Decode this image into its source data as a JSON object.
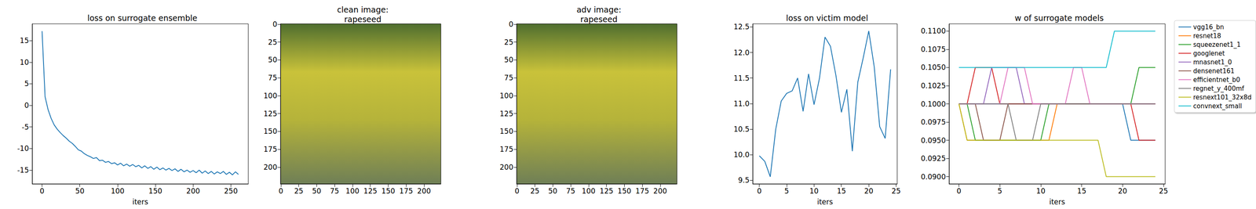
{
  "chart_data": [
    {
      "type": "line",
      "title": "loss on surrogate ensemble",
      "xlabel": "iters",
      "color": "#1f77b4",
      "grid": false,
      "x": [
        0,
        4,
        8,
        12,
        16,
        20,
        24,
        28,
        32,
        36,
        40,
        44,
        48,
        52,
        56,
        60,
        64,
        68,
        72,
        76,
        80,
        84,
        88,
        92,
        96,
        100,
        104,
        108,
        112,
        116,
        120,
        124,
        128,
        132,
        136,
        140,
        144,
        148,
        152,
        156,
        160,
        164,
        168,
        172,
        176,
        180,
        184,
        188,
        192,
        196,
        200,
        204,
        208,
        212,
        216,
        220,
        224,
        228,
        232,
        236,
        240,
        244,
        248,
        252,
        256,
        260
      ],
      "values": [
        17.2,
        2.0,
        -1.0,
        -3.0,
        -4.5,
        -5.5,
        -6.3,
        -7.0,
        -7.6,
        -8.3,
        -8.8,
        -9.5,
        -10.3,
        -10.6,
        -11.2,
        -11.6,
        -11.9,
        -12.3,
        -12.1,
        -12.8,
        -12.7,
        -13.2,
        -13.0,
        -13.5,
        -13.3,
        -13.8,
        -13.4,
        -14.0,
        -13.6,
        -14.1,
        -13.7,
        -14.2,
        -13.9,
        -14.5,
        -14.0,
        -14.6,
        -14.2,
        -14.8,
        -14.3,
        -14.9,
        -14.5,
        -15.0,
        -14.6,
        -15.1,
        -14.7,
        -15.3,
        -14.8,
        -15.4,
        -15.0,
        -15.5,
        -15.1,
        -15.6,
        -15.0,
        -15.7,
        -15.2,
        -15.8,
        -15.3,
        -15.9,
        -15.4,
        -15.8,
        -15.3,
        -16.0,
        -15.5,
        -16.1,
        -15.4,
        -16.0
      ],
      "xlim": [
        -13,
        273
      ],
      "xticks": [
        0,
        50,
        100,
        150,
        200,
        250
      ],
      "ylim": [
        -18.2,
        18.9
      ],
      "yticks": [
        -15,
        -10,
        -5,
        0,
        5,
        10,
        15
      ]
    },
    {
      "type": "image",
      "title": "clean image:\nrapeseed",
      "xlim": [
        -0.5,
        223.5
      ],
      "xticks": [
        0,
        25,
        50,
        75,
        100,
        125,
        150,
        175,
        200
      ],
      "ylim": [
        223.5,
        -0.5
      ],
      "yticks": [
        0,
        25,
        50,
        75,
        100,
        125,
        150,
        175,
        200
      ]
    },
    {
      "type": "image",
      "title": "adv image:\nrapeseed",
      "xlim": [
        -0.5,
        223.5
      ],
      "xticks": [
        0,
        25,
        50,
        75,
        100,
        125,
        150,
        175,
        200
      ],
      "ylim": [
        223.5,
        -0.5
      ],
      "yticks": [
        0,
        25,
        50,
        75,
        100,
        125,
        150,
        175,
        200
      ]
    },
    {
      "type": "line",
      "title": "loss on victim model",
      "xlabel": "iters",
      "color": "#1f77b4",
      "grid": false,
      "x": [
        0,
        1,
        2,
        3,
        4,
        5,
        6,
        7,
        8,
        9,
        10,
        11,
        12,
        13,
        14,
        15,
        16,
        17,
        18,
        19,
        20,
        21,
        22,
        23,
        24
      ],
      "values": [
        9.98,
        9.87,
        9.57,
        10.5,
        11.05,
        11.2,
        11.25,
        11.5,
        10.85,
        11.58,
        10.98,
        11.5,
        12.3,
        12.12,
        11.55,
        10.83,
        11.28,
        10.07,
        11.42,
        11.9,
        12.42,
        11.72,
        10.55,
        10.32,
        11.67
      ],
      "xlim": [
        -1.2,
        25.2
      ],
      "xticks": [
        0,
        5,
        10,
        15,
        20,
        25
      ],
      "ylim": [
        9.43,
        12.56
      ],
      "yticks": [
        9.5,
        {
          "value": 10,
          "label": "10.0"
        },
        10.5,
        {
          "value": 11,
          "label": "11.0"
        },
        11.5,
        {
          "value": 12,
          "label": "12.0"
        },
        12.5
      ]
    },
    {
      "type": "line",
      "title": "w of surrogate models",
      "xlabel": "iters",
      "grid": false,
      "legend": "right",
      "x": [
        0,
        1,
        2,
        3,
        4,
        5,
        6,
        7,
        8,
        9,
        10,
        11,
        12,
        13,
        14,
        15,
        16,
        17,
        18,
        19,
        20,
        21,
        22,
        23,
        24
      ],
      "series": [
        {
          "name": "vgg16_bn",
          "color": "#1f77b4",
          "values": [
            0.1,
            0.1,
            0.1,
            0.1,
            0.1,
            0.1,
            0.1,
            0.1,
            0.1,
            0.1,
            0.1,
            0.1,
            0.1,
            0.1,
            0.1,
            0.1,
            0.1,
            0.1,
            0.1,
            0.1,
            0.1,
            0.095,
            0.095,
            0.095,
            0.095
          ]
        },
        {
          "name": "resnet18",
          "color": "#ff7f0e",
          "values": [
            0.1,
            0.095,
            0.095,
            0.095,
            0.095,
            0.095,
            0.095,
            0.095,
            0.095,
            0.095,
            0.095,
            0.095,
            0.1,
            0.1,
            0.1,
            0.1,
            0.1,
            0.1,
            0.1,
            0.1,
            0.1,
            0.1,
            0.1,
            0.1,
            0.1
          ]
        },
        {
          "name": "squeezenet1_1",
          "color": "#2ca02c",
          "values": [
            0.1,
            0.1,
            0.095,
            0.095,
            0.095,
            0.095,
            0.095,
            0.095,
            0.095,
            0.095,
            0.095,
            0.1,
            0.1,
            0.1,
            0.1,
            0.1,
            0.1,
            0.1,
            0.1,
            0.1,
            0.1,
            0.1,
            0.105,
            0.105,
            0.105
          ]
        },
        {
          "name": "googlenet",
          "color": "#d62728",
          "values": [
            0.1,
            0.1,
            0.105,
            0.105,
            0.105,
            0.1,
            0.1,
            0.1,
            0.1,
            0.1,
            0.1,
            0.1,
            0.1,
            0.1,
            0.1,
            0.1,
            0.1,
            0.1,
            0.1,
            0.1,
            0.1,
            0.1,
            0.095,
            0.095,
            0.095
          ]
        },
        {
          "name": "mnasnet1_0",
          "color": "#9467bd",
          "values": [
            0.1,
            0.1,
            0.1,
            0.1,
            0.105,
            0.105,
            0.105,
            0.105,
            0.1,
            0.1,
            0.1,
            0.1,
            0.1,
            0.1,
            0.1,
            0.1,
            0.1,
            0.1,
            0.1,
            0.1,
            0.1,
            0.1,
            0.1,
            0.1,
            0.1
          ]
        },
        {
          "name": "densenet161",
          "color": "#8c564b",
          "values": [
            0.1,
            0.1,
            0.1,
            0.095,
            0.095,
            0.095,
            0.1,
            0.1,
            0.1,
            0.1,
            0.1,
            0.1,
            0.1,
            0.1,
            0.1,
            0.1,
            0.1,
            0.1,
            0.1,
            0.1,
            0.1,
            0.1,
            0.1,
            0.1,
            0.1
          ]
        },
        {
          "name": "efficientnet_b0",
          "color": "#e377c2",
          "values": [
            0.1,
            0.1,
            0.1,
            0.1,
            0.1,
            0.1,
            0.105,
            0.105,
            0.105,
            0.1,
            0.1,
            0.1,
            0.1,
            0.1,
            0.105,
            0.105,
            0.1,
            0.1,
            0.1,
            0.1,
            0.1,
            0.1,
            0.1,
            0.1,
            0.1
          ]
        },
        {
          "name": "regnet_y_400mf",
          "color": "#7f7f7f",
          "values": [
            0.1,
            0.1,
            0.1,
            0.1,
            0.1,
            0.1,
            0.1,
            0.095,
            0.095,
            0.095,
            0.1,
            0.1,
            0.1,
            0.1,
            0.1,
            0.1,
            0.1,
            0.1,
            0.1,
            0.1,
            0.1,
            0.1,
            0.1,
            0.1,
            0.1
          ]
        },
        {
          "name": "resnext101_32x8d",
          "color": "#bcbd22",
          "values": [
            0.1,
            0.095,
            0.095,
            0.095,
            0.095,
            0.095,
            0.095,
            0.095,
            0.095,
            0.095,
            0.095,
            0.095,
            0.095,
            0.095,
            0.095,
            0.095,
            0.095,
            0.095,
            0.09,
            0.09,
            0.09,
            0.09,
            0.09,
            0.09,
            0.09
          ]
        },
        {
          "name": "convnext_small",
          "color": "#17becf",
          "values": [
            0.105,
            0.105,
            0.105,
            0.105,
            0.105,
            0.105,
            0.105,
            0.105,
            0.105,
            0.105,
            0.105,
            0.105,
            0.105,
            0.105,
            0.105,
            0.105,
            0.105,
            0.105,
            0.105,
            0.11,
            0.11,
            0.11,
            0.11,
            0.11,
            0.11
          ]
        }
      ],
      "xlim": [
        -1.2,
        25.2
      ],
      "xticks": [
        0,
        5,
        10,
        15,
        20,
        25
      ],
      "ylim": [
        0.089,
        0.111
      ],
      "yticks": [
        {
          "value": 0.09,
          "label": "0.0900"
        },
        {
          "value": 0.0925,
          "label": "0.0925"
        },
        {
          "value": 0.095,
          "label": "0.0950"
        },
        {
          "value": 0.0975,
          "label": "0.0975"
        },
        {
          "value": 0.1,
          "label": "0.1000"
        },
        {
          "value": 0.1025,
          "label": "0.1025"
        },
        {
          "value": 0.105,
          "label": "0.1050"
        },
        {
          "value": 0.1075,
          "label": "0.1075"
        },
        {
          "value": 0.11,
          "label": "0.1100"
        }
      ]
    }
  ]
}
